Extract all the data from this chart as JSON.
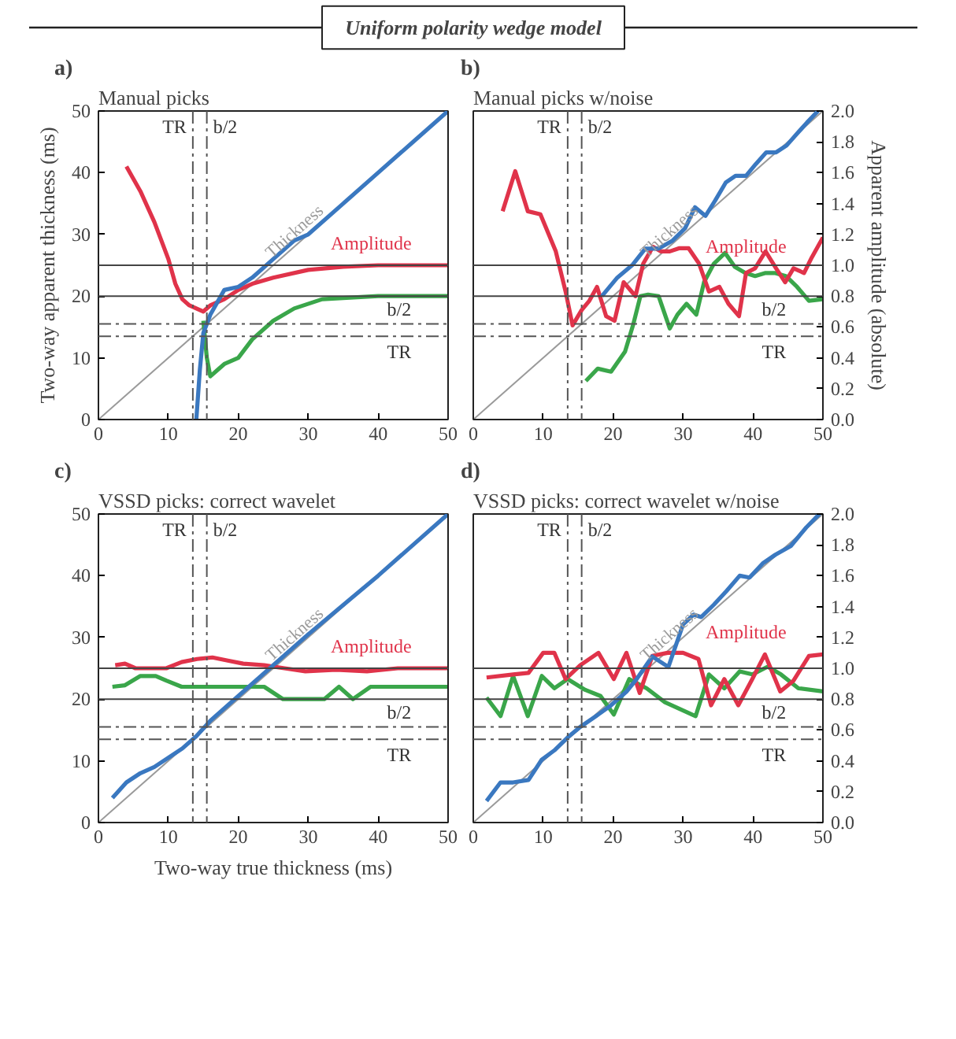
{
  "chart_data": [
    {
      "type": "line",
      "title": "Manual picks",
      "annotations": [
        "Uniform polarity wedge model",
        "a)"
      ],
      "ylabel": "Two-way apparent thickness (ms)",
      "xlim": [
        0,
        50
      ],
      "ylim": [
        0,
        50
      ],
      "y2lim": [
        0,
        2
      ],
      "xticks": [
        0,
        10,
        20,
        30,
        40,
        50
      ],
      "yticks": [
        0,
        10,
        20,
        30,
        40,
        50
      ],
      "tick_labels": [
        "x",
        "y"
      ],
      "grid": false,
      "marker": "none",
      "line_style": "solid",
      "series": [
        {
          "name": "Thickness",
          "color": "#9a9a9a",
          "x": [
            0,
            50
          ],
          "values": [
            0,
            50
          ]
        },
        {
          "color": "#3aa64a",
          "axis": "y2",
          "x": [
            15,
            15.5,
            16,
            17,
            18,
            20,
            22,
            25,
            28,
            32,
            40,
            50
          ],
          "values": [
            0.64,
            0.4,
            0.28,
            0.32,
            0.36,
            0.4,
            0.52,
            0.64,
            0.72,
            0.78,
            0.8,
            0.8
          ]
        },
        {
          "name": "Amplitude",
          "color": "#e0334a",
          "axis": "y2",
          "x": [
            4,
            6,
            8,
            10,
            11,
            12,
            13,
            14,
            15,
            16,
            18,
            20,
            22,
            25,
            30,
            35,
            40,
            50
          ],
          "values": [
            1.64,
            1.48,
            1.28,
            1.04,
            0.88,
            0.78,
            0.74,
            0.72,
            0.7,
            0.74,
            0.78,
            0.84,
            0.88,
            0.92,
            0.97,
            0.99,
            1.0,
            1.0
          ]
        },
        {
          "color": "#3a78c0",
          "x": [
            14,
            14.5,
            15,
            16,
            18,
            20,
            22,
            25,
            28,
            30,
            35,
            40,
            45,
            50
          ],
          "values": [
            0,
            8,
            14,
            17,
            21,
            21.5,
            23,
            26,
            29,
            30,
            35,
            40,
            45,
            50
          ]
        }
      ],
      "ref_lines": [
        {
          "axis": "y",
          "value": 25,
          "color": "#444444",
          "line_style": "solid"
        },
        {
          "axis": "y",
          "value": 20,
          "color": "#444444",
          "line_style": "solid"
        },
        {
          "axis": "y",
          "value": 15.5,
          "label": "b/2",
          "color": "#555555",
          "line_style": "dashed"
        },
        {
          "axis": "y",
          "value": 13.5,
          "label": "TR",
          "color": "#555555",
          "line_style": "dashed"
        },
        {
          "axis": "x",
          "value": 13.5,
          "label": "TR",
          "color": "#555555",
          "line_style": "dashed"
        },
        {
          "axis": "x",
          "value": 15.5,
          "label": "b/2",
          "color": "#555555",
          "line_style": "dashed"
        }
      ]
    },
    {
      "type": "line",
      "title": "Manual picks w/noise",
      "annotations": [
        "b)"
      ],
      "y2label": "Apparent amplitude (absolute)",
      "xlim": [
        0,
        50
      ],
      "ylim": [
        0,
        50
      ],
      "y2lim": [
        0,
        2
      ],
      "xticks": [
        0,
        10,
        20,
        30,
        40,
        50
      ],
      "y2ticks": [
        {
          "value": 0,
          "label": "0.0"
        },
        0.2,
        0.4,
        0.6,
        0.8,
        {
          "value": 1,
          "label": "1.0"
        },
        1.2,
        1.4,
        1.6,
        1.8,
        {
          "value": 2,
          "label": "2.0"
        }
      ],
      "tick_labels": [
        "x",
        "y2"
      ],
      "grid": false,
      "marker": "none",
      "line_style": "solid",
      "series": [
        {
          "name": "Thickness",
          "color": "#9a9a9a",
          "x": [
            0,
            50
          ],
          "values": [
            0,
            50
          ]
        },
        {
          "color": "#3aa64a",
          "axis": "y2",
          "x": [
            16.1,
            17.8,
            19.7,
            21.7,
            22.9,
            23.9,
            25,
            26.5,
            28.1,
            29.2,
            30.5,
            31.9,
            33,
            34.4,
            36,
            37.4,
            38.9,
            40.3,
            41.8,
            43.1,
            44.7,
            46.3,
            48,
            50
          ],
          "values": [
            0.25,
            0.33,
            0.31,
            0.44,
            0.62,
            0.8,
            0.81,
            0.8,
            0.59,
            0.68,
            0.75,
            0.68,
            0.89,
            1.01,
            1.08,
            0.99,
            0.95,
            0.93,
            0.95,
            0.95,
            0.93,
            0.86,
            0.77,
            0.78
          ]
        },
        {
          "name": "Amplitude",
          "color": "#e0334a",
          "axis": "y2",
          "x": [
            4.2,
            6,
            7.8,
            9.6,
            11.8,
            13.2,
            14.2,
            15.5,
            16.6,
            17.7,
            19,
            20.2,
            21.5,
            23.2,
            24.3,
            25.7,
            26.8,
            28.1,
            29.4,
            30.8,
            32.3,
            33.7,
            35.2,
            36.5,
            38,
            39,
            40.3,
            41.8,
            43.3,
            44.6,
            45.8,
            47.3,
            48.4,
            50
          ],
          "values": [
            1.35,
            1.61,
            1.35,
            1.33,
            1.09,
            0.83,
            0.61,
            0.71,
            0.77,
            0.86,
            0.67,
            0.64,
            0.89,
            0.8,
            1.01,
            1.12,
            1.09,
            1.09,
            1.11,
            1.11,
            1.01,
            0.83,
            0.86,
            0.75,
            0.67,
            0.95,
            0.98,
            1.09,
            0.98,
            0.89,
            0.98,
            0.95,
            1.05,
            1.18
          ]
        },
        {
          "color": "#3a78c0",
          "x": [
            18.4,
            20.6,
            22.8,
            24.6,
            26.5,
            28.5,
            30.3,
            31.7,
            33.2,
            34.6,
            36.1,
            37.5,
            39,
            40.4,
            41.9,
            43.3,
            44.8,
            46.2,
            47.7,
            49.3
          ],
          "values": [
            20,
            23,
            25.1,
            27.7,
            27.7,
            29,
            31,
            34.4,
            33,
            35.5,
            38.4,
            39.5,
            39.5,
            41.4,
            43.3,
            43.3,
            44.4,
            46.2,
            48.1,
            50
          ]
        }
      ],
      "ref_lines": [
        {
          "axis": "y",
          "value": 25,
          "color": "#444444",
          "line_style": "solid"
        },
        {
          "axis": "y",
          "value": 20,
          "color": "#444444",
          "line_style": "solid"
        },
        {
          "axis": "y",
          "value": 15.5,
          "label": "b/2",
          "color": "#555555",
          "line_style": "dashed"
        },
        {
          "axis": "y",
          "value": 13.5,
          "label": "TR",
          "color": "#555555",
          "line_style": "dashed"
        },
        {
          "axis": "x",
          "value": 13.5,
          "label": "TR",
          "color": "#555555",
          "line_style": "dashed"
        },
        {
          "axis": "x",
          "value": 15.5,
          "label": "b/2",
          "color": "#555555",
          "line_style": "dashed"
        }
      ]
    },
    {
      "type": "line",
      "title": "VSSD picks: correct wavelet",
      "annotations": [
        "c)"
      ],
      "xlabel": "Two-way true thickness (ms)",
      "xlim": [
        0,
        50
      ],
      "ylim": [
        0,
        50
      ],
      "y2lim": [
        0,
        2
      ],
      "xticks": [
        0,
        10,
        20,
        30,
        40,
        50
      ],
      "yticks": [
        0,
        10,
        20,
        30,
        40,
        50
      ],
      "tick_labels": [
        "x",
        "y"
      ],
      "grid": false,
      "marker": "none",
      "line_style": "solid",
      "series": [
        {
          "name": "Thickness",
          "color": "#9a9a9a",
          "x": [
            0,
            50
          ],
          "values": [
            0,
            50
          ]
        },
        {
          "color": "#3aa64a",
          "axis": "y2",
          "x": [
            2,
            3.8,
            6,
            8.2,
            9.7,
            11.9,
            17.1,
            23.7,
            26.4,
            32.3,
            34.4,
            36.4,
            38.9,
            50
          ],
          "values": [
            0.88,
            0.89,
            0.95,
            0.95,
            0.92,
            0.88,
            0.88,
            0.88,
            0.8,
            0.8,
            0.88,
            0.8,
            0.88,
            0.88
          ]
        },
        {
          "name": "Amplitude",
          "color": "#e0334a",
          "axis": "y2",
          "x": [
            2.4,
            3.8,
            5.3,
            7.5,
            9.7,
            11.9,
            14.1,
            16.3,
            18.5,
            20.7,
            23.7,
            26.6,
            29.6,
            34,
            38.4,
            42.8,
            50
          ],
          "values": [
            1.02,
            1.03,
            1.0,
            1.0,
            1.0,
            1.04,
            1.06,
            1.07,
            1.05,
            1.03,
            1.02,
            1.0,
            0.98,
            0.99,
            0.98,
            1.0,
            1.0
          ]
        },
        {
          "color": "#3a78c0",
          "x": [
            2,
            4,
            6,
            8,
            10,
            12,
            14,
            16,
            20,
            30,
            40,
            50
          ],
          "values": [
            4,
            6.5,
            8,
            9,
            10.5,
            12,
            14,
            16.5,
            20.5,
            30.5,
            40,
            50
          ]
        }
      ],
      "ref_lines": [
        {
          "axis": "y",
          "value": 25,
          "color": "#444444",
          "line_style": "solid"
        },
        {
          "axis": "y",
          "value": 20,
          "color": "#444444",
          "line_style": "solid"
        },
        {
          "axis": "y",
          "value": 15.5,
          "label": "b/2",
          "color": "#555555",
          "line_style": "dashed"
        },
        {
          "axis": "y",
          "value": 13.5,
          "label": "TR",
          "color": "#555555",
          "line_style": "dashed"
        },
        {
          "axis": "x",
          "value": 13.5,
          "label": "TR",
          "color": "#555555",
          "line_style": "dashed"
        },
        {
          "axis": "x",
          "value": 15.5,
          "label": "b/2",
          "color": "#555555",
          "line_style": "dashed"
        }
      ]
    },
    {
      "type": "line",
      "title": "VSSD picks: correct wavelet w/noise",
      "annotations": [
        "d)"
      ],
      "xlim": [
        0,
        50
      ],
      "ylim": [
        0,
        50
      ],
      "y2lim": [
        0,
        2
      ],
      "xticks": [
        0,
        10,
        20,
        30,
        40,
        50
      ],
      "y2ticks": [
        {
          "value": 0,
          "label": "0.0"
        },
        0.2,
        0.4,
        0.6,
        0.8,
        {
          "value": 1,
          "label": "1.0"
        },
        1.2,
        1.4,
        1.6,
        1.8,
        {
          "value": 2,
          "label": "2.0"
        }
      ],
      "tick_labels": [
        "x",
        "y2"
      ],
      "grid": false,
      "marker": "none",
      "line_style": "solid",
      "series": [
        {
          "name": "Thickness",
          "color": "#9a9a9a",
          "x": [
            0,
            50
          ],
          "values": [
            0,
            50
          ]
        },
        {
          "color": "#3aa64a",
          "axis": "y2",
          "x": [
            1.9,
            3.9,
            5.7,
            7.8,
            9.8,
            11.6,
            13.5,
            16,
            18.2,
            20.1,
            22.3,
            24.8,
            27.4,
            31.8,
            33.7,
            35.9,
            38.1,
            39.9,
            42.1,
            44,
            46.5,
            50
          ],
          "values": [
            0.81,
            0.69,
            0.95,
            0.69,
            0.95,
            0.87,
            0.93,
            0.86,
            0.82,
            0.7,
            0.93,
            0.87,
            0.78,
            0.69,
            0.96,
            0.87,
            0.98,
            0.96,
            1.01,
            0.96,
            0.87,
            0.85
          ]
        },
        {
          "name": "Amplitude",
          "color": "#e0334a",
          "axis": "y2",
          "x": [
            1.9,
            5.7,
            7.9,
            10,
            11.6,
            13.2,
            15.3,
            17.9,
            20.1,
            21.9,
            23.8,
            25.6,
            27.8,
            30,
            32.2,
            34,
            35.9,
            37.9,
            39.9,
            41.7,
            43.9,
            45.8,
            48,
            50
          ],
          "values": [
            0.94,
            0.96,
            0.97,
            1.1,
            1.1,
            0.93,
            1.02,
            1.1,
            0.93,
            1.1,
            0.84,
            1.08,
            1.1,
            1.1,
            1.06,
            0.76,
            0.93,
            0.76,
            0.93,
            1.09,
            0.85,
            0.92,
            1.08,
            1.09
          ]
        },
        {
          "color": "#3a78c0",
          "x": [
            1.9,
            3.9,
            5.7,
            7.9,
            9.8,
            11.6,
            13.5,
            15.3,
            17.5,
            19.7,
            21.9,
            23.4,
            25.6,
            27.9,
            30,
            31.5,
            32.6,
            34.4,
            36.2,
            38.1,
            39.5,
            41.4,
            43.2,
            45.4,
            47.6,
            49.5
          ],
          "values": [
            3.5,
            6.5,
            6.5,
            6.9,
            10.2,
            11.7,
            13.8,
            15.5,
            17.2,
            19,
            21.2,
            23.3,
            26.9,
            25.2,
            32.1,
            33.7,
            33.3,
            35.3,
            37.5,
            40,
            39.7,
            42,
            43.4,
            44.8,
            47.8,
            50
          ]
        }
      ],
      "ref_lines": [
        {
          "axis": "y",
          "value": 25,
          "color": "#444444",
          "line_style": "solid"
        },
        {
          "axis": "y",
          "value": 20,
          "color": "#444444",
          "line_style": "solid"
        },
        {
          "axis": "y",
          "value": 15.5,
          "label": "b/2",
          "color": "#555555",
          "line_style": "dashed"
        },
        {
          "axis": "y",
          "value": 13.5,
          "label": "TR",
          "color": "#555555",
          "line_style": "dashed"
        },
        {
          "axis": "x",
          "value": 13.5,
          "label": "TR",
          "color": "#555555",
          "line_style": "dashed"
        },
        {
          "axis": "x",
          "value": 15.5,
          "label": "b/2",
          "color": "#555555",
          "line_style": "dashed"
        }
      ]
    }
  ]
}
